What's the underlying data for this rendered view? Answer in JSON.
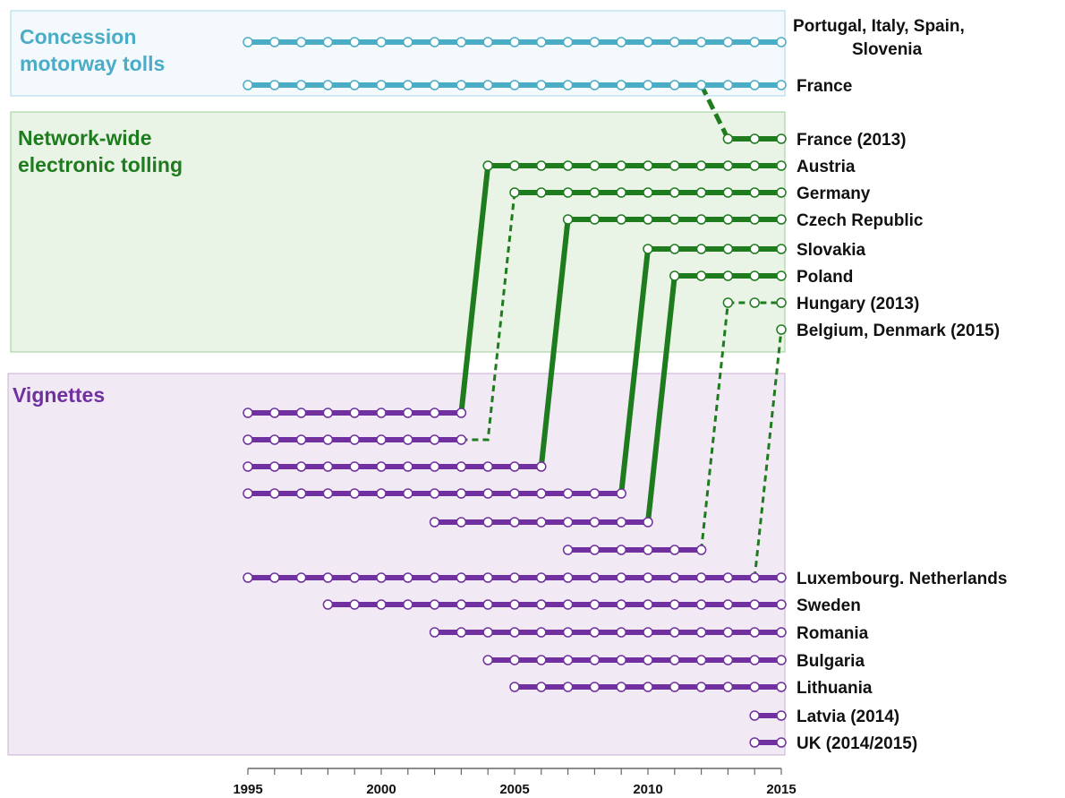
{
  "chart_data": {
    "type": "timeline",
    "xlim": [
      1995,
      2015
    ],
    "xticks": [
      1995,
      2000,
      2005,
      2010,
      2015
    ],
    "minor_xticks": [
      1995,
      1996,
      1997,
      1998,
      1999,
      2000,
      2001,
      2002,
      2003,
      2004,
      2005,
      2006,
      2007,
      2008,
      2009,
      2010,
      2011,
      2012,
      2013,
      2014,
      2015
    ],
    "groups": [
      {
        "name": [
          "Concession",
          "motorway tolls"
        ],
        "color": "#4bacc6",
        "fill": "#f4f9fd",
        "border": "#a9d6e8"
      },
      {
        "name": [
          "Network-wide",
          "electronic tolling"
        ],
        "color": "#1e7b1e",
        "fill": "#e9f4e6",
        "border": "#9fcb99"
      },
      {
        "name": [
          "Vignettes"
        ],
        "color": "#7030a0",
        "fill": "#f1e9f3",
        "border": "#c8b1d6"
      }
    ],
    "tracks": [
      {
        "label": [
          "Portugal, Italy, Spain,",
          "Slovenia"
        ],
        "group": 0,
        "start": 1995,
        "end": 2015,
        "style": "solid"
      },
      {
        "label": [
          "France"
        ],
        "group": 0,
        "start": 1995,
        "end": 2015,
        "style": "solid"
      },
      {
        "label": [
          "France (2013)"
        ],
        "group": 1,
        "start": 2013,
        "end": 2015,
        "style": "solid",
        "from": {
          "track": 1,
          "year": 2012,
          "style": "dashed"
        }
      },
      {
        "label": [
          "Austria"
        ],
        "group": 1,
        "start": 2004,
        "end": 2015,
        "style": "solid",
        "from": {
          "track": 10,
          "year": 2003,
          "style": "solid"
        }
      },
      {
        "label": [
          "Germany"
        ],
        "group": 1,
        "start": 2005,
        "end": 2015,
        "style": "solid",
        "from": {
          "track": 11,
          "year": 2003,
          "style": "dashed"
        }
      },
      {
        "label": [
          "Czech Republic"
        ],
        "group": 1,
        "start": 2007,
        "end": 2015,
        "style": "solid",
        "from": {
          "track": 12,
          "year": 2006,
          "style": "solid"
        }
      },
      {
        "label": [
          "Slovakia"
        ],
        "group": 1,
        "start": 2010,
        "end": 2015,
        "style": "solid",
        "from": {
          "track": 13,
          "year": 2009,
          "style": "solid"
        }
      },
      {
        "label": [
          "Poland"
        ],
        "group": 1,
        "start": 2011,
        "end": 2015,
        "style": "solid",
        "from": {
          "track": 14,
          "year": 2010,
          "style": "solid"
        }
      },
      {
        "label": [
          "Hungary (2013)"
        ],
        "group": 1,
        "start": 2013,
        "end": 2015,
        "style": "dashed",
        "from": {
          "track": 15,
          "year": 2012,
          "style": "dashed"
        }
      },
      {
        "label": [
          "Belgium, Denmark (2015)"
        ],
        "group": 1,
        "start": 2015,
        "end": 2015,
        "style": "solid",
        "from": {
          "track": 16,
          "year": 2014,
          "style": "dashed"
        }
      },
      {
        "label": null,
        "group": 2,
        "start": 1995,
        "end": 2003,
        "style": "solid"
      },
      {
        "label": null,
        "group": 2,
        "start": 1995,
        "end": 2003,
        "style": "solid"
      },
      {
        "label": null,
        "group": 2,
        "start": 1995,
        "end": 2006,
        "style": "solid"
      },
      {
        "label": null,
        "group": 2,
        "start": 1995,
        "end": 2009,
        "style": "solid"
      },
      {
        "label": null,
        "group": 2,
        "start": 2002,
        "end": 2010,
        "style": "solid"
      },
      {
        "label": null,
        "group": 2,
        "start": 2007,
        "end": 2012,
        "style": "solid"
      },
      {
        "label": [
          "Luxembourg. Netherlands"
        ],
        "group": 2,
        "start": 1995,
        "end": 2015,
        "style": "solid"
      },
      {
        "label": [
          "Sweden"
        ],
        "group": 2,
        "start": 1998,
        "end": 2015,
        "style": "solid"
      },
      {
        "label": [
          "Romania"
        ],
        "group": 2,
        "start": 2002,
        "end": 2015,
        "style": "solid"
      },
      {
        "label": [
          "Bulgaria"
        ],
        "group": 2,
        "start": 2004,
        "end": 2015,
        "style": "solid"
      },
      {
        "label": [
          "Lithuania"
        ],
        "group": 2,
        "start": 2005,
        "end": 2015,
        "style": "solid"
      },
      {
        "label": [
          "Latvia (2014)"
        ],
        "group": 2,
        "start": 2014,
        "end": 2015,
        "style": "solid"
      },
      {
        "label": [
          "UK (2014/2015)"
        ],
        "group": 2,
        "start": 2014,
        "end": 2015,
        "style": "solid"
      }
    ]
  }
}
